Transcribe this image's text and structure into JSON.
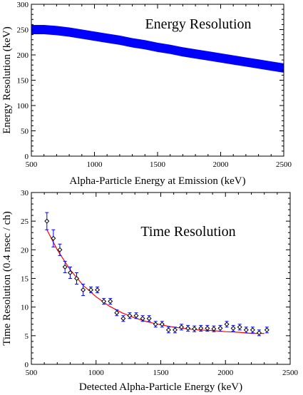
{
  "chart_data": [
    {
      "type": "line",
      "title": "Energy Resolution",
      "xlabel": "Alpha-Particle Energy at Emission (keV)",
      "ylabel": "Energy Resolution (keV)",
      "xlim": [
        500,
        2500
      ],
      "ylim": [
        0,
        300
      ],
      "xticks": [
        500,
        1000,
        1500,
        2000,
        2500
      ],
      "yticks": [
        0,
        50,
        100,
        150,
        200,
        250,
        300
      ],
      "xtick_labels": [
        "500",
        "1000",
        "1500",
        "2000",
        "2500"
      ],
      "ytick_labels": [
        "0",
        "50",
        "100",
        "150",
        "200",
        "250",
        "300"
      ],
      "band_halfwidth": 6,
      "color": "#0000ff",
      "series": [
        {
          "x": [
            500,
            600,
            700,
            800,
            900,
            1000,
            1100,
            1200,
            1300,
            1400,
            1500,
            1600,
            1700,
            1800,
            1900,
            2000,
            2100,
            2200,
            2300,
            2400,
            2500
          ],
          "values": [
            250,
            250,
            248,
            245,
            241,
            237,
            233,
            229,
            224,
            220,
            215,
            211,
            206,
            202,
            198,
            194,
            190,
            186,
            182,
            178,
            174
          ]
        }
      ]
    },
    {
      "type": "scatter",
      "title": "Time Resolution",
      "xlabel": "Detected Alpha-Particle Energy (keV)",
      "ylabel": "Time Resolution (0.4 nsec / ch)",
      "xlim": [
        500,
        2500
      ],
      "ylim": [
        0,
        30
      ],
      "xticks": [
        500,
        1000,
        1500,
        2000,
        2500
      ],
      "yticks": [
        0,
        5,
        10,
        15,
        20,
        25,
        30
      ],
      "xtick_labels": [
        "500",
        "1000",
        "1500",
        "2000",
        "2500"
      ],
      "ytick_labels": [
        "0",
        "5",
        "10",
        "15",
        "20",
        "25",
        "30"
      ],
      "point_color": "#000000",
      "errorbar_color": "#0000ff",
      "fit_color": "#ff0000",
      "points": [
        {
          "x": 620,
          "y": 25.0,
          "err": 1.5
        },
        {
          "x": 670,
          "y": 22.0,
          "err": 1.5
        },
        {
          "x": 720,
          "y": 20.0,
          "err": 1.0
        },
        {
          "x": 760,
          "y": 17.0,
          "err": 1.0
        },
        {
          "x": 800,
          "y": 16.0,
          "err": 1.0
        },
        {
          "x": 850,
          "y": 15.0,
          "err": 1.0
        },
        {
          "x": 900,
          "y": 13.0,
          "err": 1.0
        },
        {
          "x": 960,
          "y": 13.0,
          "err": 0.5
        },
        {
          "x": 1010,
          "y": 13.0,
          "err": 0.5
        },
        {
          "x": 1060,
          "y": 11.0,
          "err": 0.5
        },
        {
          "x": 1110,
          "y": 11.0,
          "err": 0.5
        },
        {
          "x": 1160,
          "y": 9.0,
          "err": 0.5
        },
        {
          "x": 1210,
          "y": 8.0,
          "err": 0.5
        },
        {
          "x": 1260,
          "y": 8.5,
          "err": 0.5
        },
        {
          "x": 1310,
          "y": 8.5,
          "err": 0.5
        },
        {
          "x": 1360,
          "y": 8.0,
          "err": 0.5
        },
        {
          "x": 1410,
          "y": 8.0,
          "err": 0.5
        },
        {
          "x": 1460,
          "y": 7.0,
          "err": 0.5
        },
        {
          "x": 1510,
          "y": 7.0,
          "err": 0.5
        },
        {
          "x": 1560,
          "y": 6.0,
          "err": 0.5
        },
        {
          "x": 1610,
          "y": 6.0,
          "err": 0.5
        },
        {
          "x": 1660,
          "y": 6.5,
          "err": 0.5
        },
        {
          "x": 1710,
          "y": 6.3,
          "err": 0.5
        },
        {
          "x": 1760,
          "y": 6.2,
          "err": 0.5
        },
        {
          "x": 1810,
          "y": 6.3,
          "err": 0.5
        },
        {
          "x": 1860,
          "y": 6.3,
          "err": 0.5
        },
        {
          "x": 1910,
          "y": 6.2,
          "err": 0.5
        },
        {
          "x": 1960,
          "y": 6.3,
          "err": 0.5
        },
        {
          "x": 2010,
          "y": 7.0,
          "err": 0.5
        },
        {
          "x": 2060,
          "y": 6.3,
          "err": 0.5
        },
        {
          "x": 2110,
          "y": 6.5,
          "err": 0.5
        },
        {
          "x": 2160,
          "y": 6.0,
          "err": 0.5
        },
        {
          "x": 2210,
          "y": 6.0,
          "err": 0.5
        },
        {
          "x": 2260,
          "y": 5.5,
          "err": 0.5
        },
        {
          "x": 2320,
          "y": 6.0,
          "err": 0.5
        }
      ],
      "fit_curve": {
        "x": [
          620,
          700,
          800,
          900,
          1000,
          1100,
          1200,
          1300,
          1400,
          1500,
          1600,
          1700,
          1800,
          1900,
          2000,
          2100,
          2200,
          2300
        ],
        "values": [
          23.5,
          20.0,
          16.5,
          13.8,
          11.8,
          10.2,
          9.0,
          8.1,
          7.4,
          6.9,
          6.5,
          6.2,
          6.0,
          5.9,
          5.7,
          5.6,
          5.4,
          5.4
        ]
      }
    }
  ]
}
